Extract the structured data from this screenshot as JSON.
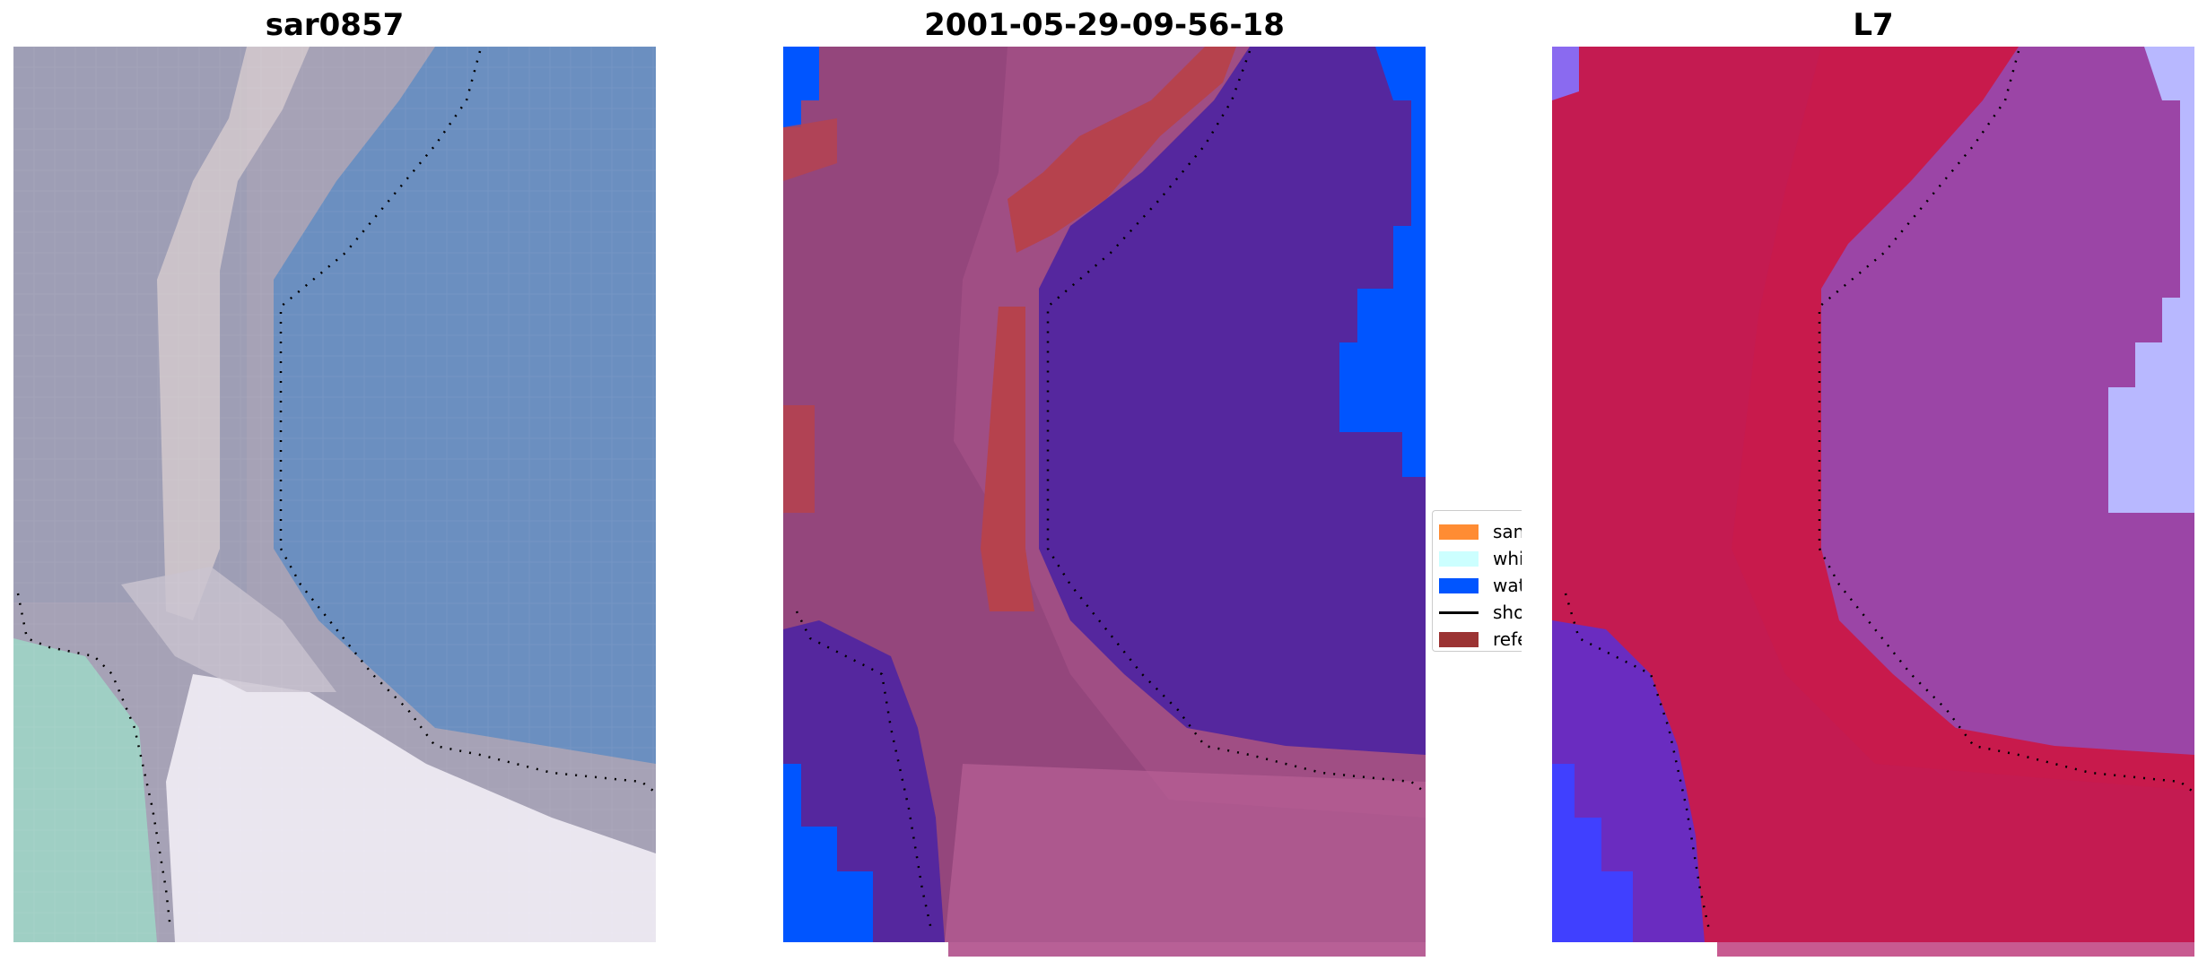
{
  "panels": [
    {
      "title": "sar0857"
    },
    {
      "title": "2001-05-29-09-56-18"
    },
    {
      "title": "L7"
    }
  ],
  "legend": {
    "items": [
      {
        "label": "sand",
        "color": "#ff8c33"
      },
      {
        "label": "whitewater",
        "color": "#ccffff"
      },
      {
        "label": "water",
        "color": "#0055ff"
      },
      {
        "label": "shoreline",
        "color": "#000000"
      },
      {
        "label": "reference",
        "color": "#9b3333"
      }
    ]
  },
  "colors": {
    "rgb_water": "#6b8fc0",
    "rgb_land": "#a6a2b6",
    "rgb_sea_green": "#9fcfc4",
    "class_water": "#0055ff",
    "class_land_overlay": "#a04e84",
    "class_deep_water": "#55279e",
    "class_reference": "#b6424d",
    "mndwi_land": "#c81a4c",
    "mndwi_water": "#9b45a6",
    "mndwi_light": "#b8b8ff",
    "mndwi_blue": "#4040ff"
  }
}
